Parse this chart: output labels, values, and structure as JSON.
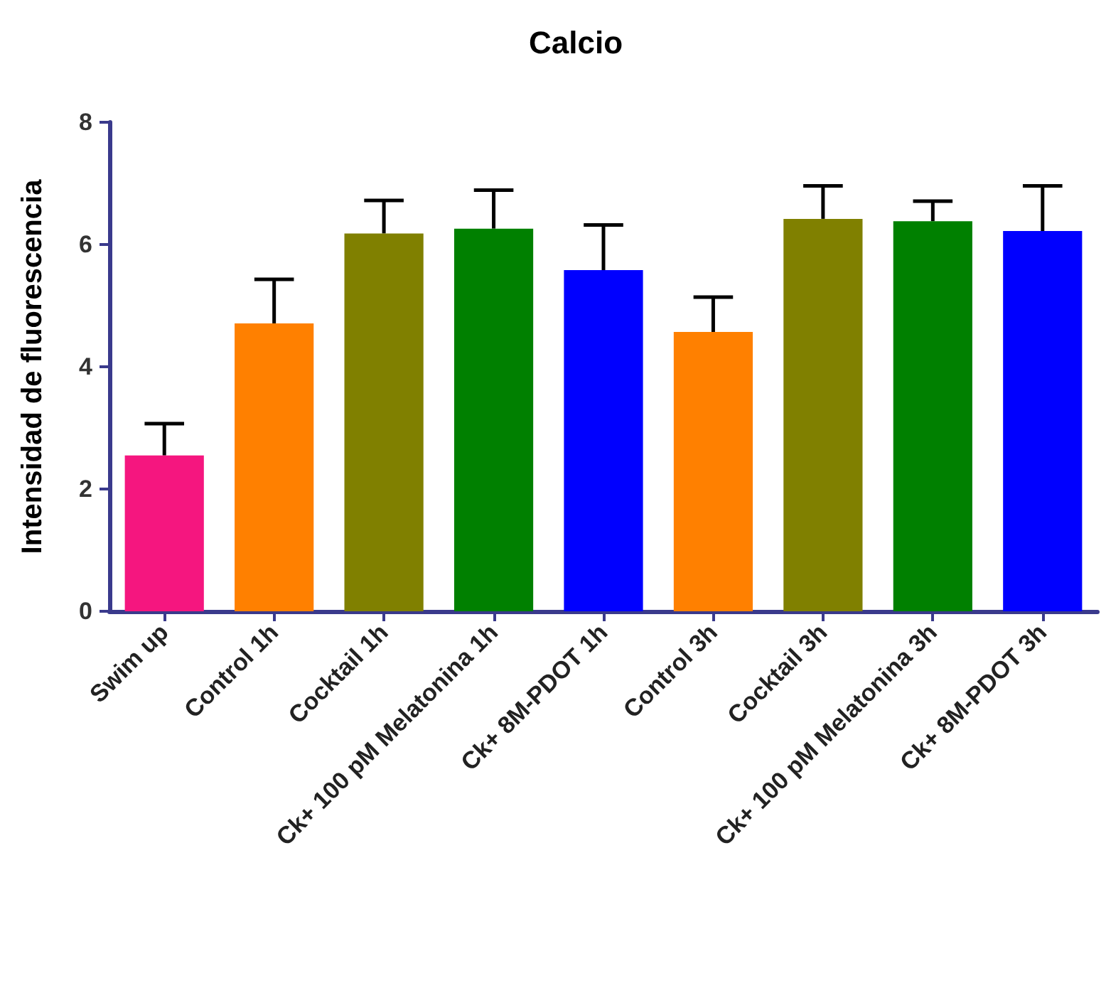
{
  "chart_data": {
    "type": "bar",
    "title": "Calcio",
    "ylabel": "Intensidad de fluorescencia",
    "categories": [
      "Swim up",
      "Control 1h",
      "Cocktail 1h",
      "Ck+ 100 pM Melatonina 1h",
      "Ck+ 8M-PDOT 1h",
      "Control 3h",
      "Cocktail 3h",
      "Ck+ 100 pM Melatonina 3h",
      "Ck+ 8M-PDOT 3h"
    ],
    "values": [
      2.55,
      4.71,
      6.18,
      6.26,
      5.58,
      4.57,
      6.42,
      6.38,
      6.22
    ],
    "errors": [
      0.52,
      0.72,
      0.54,
      0.63,
      0.74,
      0.57,
      0.54,
      0.33,
      0.74
    ],
    "colors": [
      "#f5167f",
      "#ff8000",
      "#808000",
      "#008000",
      "#0000ff",
      "#ff8000",
      "#808000",
      "#008000",
      "#0000ff"
    ],
    "ylim": [
      0,
      8
    ],
    "yticks": [
      0,
      2,
      4,
      6,
      8
    ],
    "grid": false
  }
}
